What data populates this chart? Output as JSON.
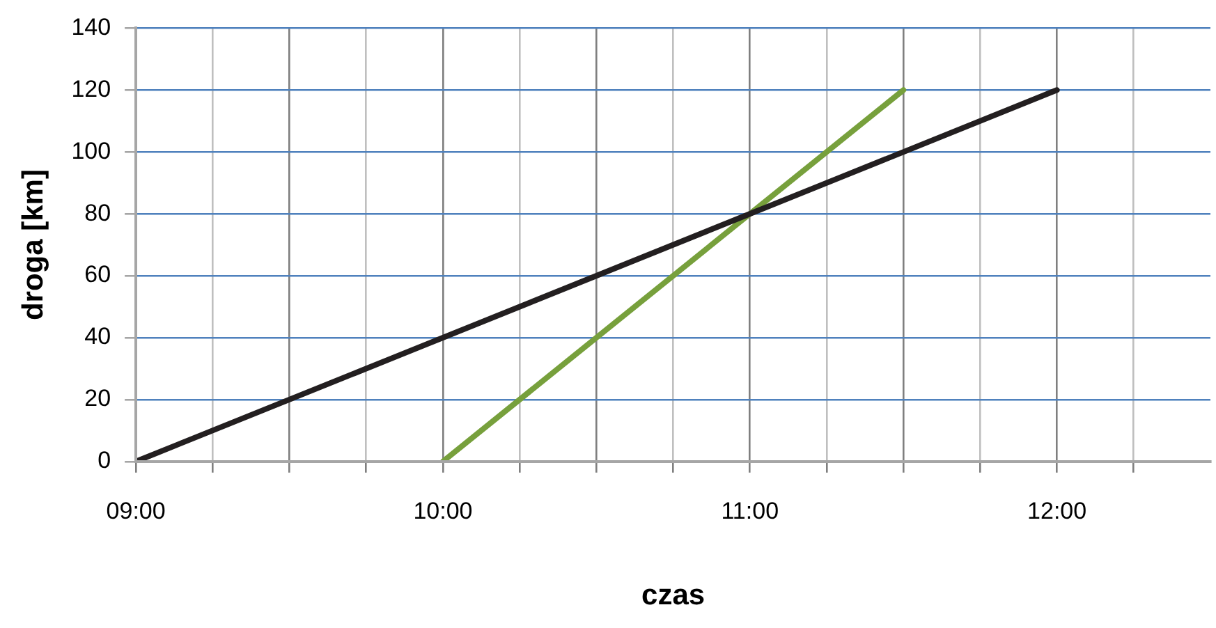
{
  "chart_data": {
    "type": "line",
    "xlabel": "czas",
    "ylabel": "droga [km]",
    "series": [
      {
        "color": "#231f20",
        "x": [
          9,
          12
        ],
        "values": [
          0,
          120
        ]
      },
      {
        "color": "#77a03c",
        "x": [
          10,
          11.5
        ],
        "values": [
          0,
          120
        ]
      }
    ],
    "xlim": [
      9,
      12.5
    ],
    "xticks": [
      {
        "value": 9,
        "label": "09:00"
      },
      {
        "value": 9.25,
        "label": null
      },
      {
        "value": 9.5,
        "label": null
      },
      {
        "value": 9.75,
        "label": null
      },
      {
        "value": 10,
        "label": "10:00"
      },
      {
        "value": 10.25,
        "label": null
      },
      {
        "value": 10.5,
        "label": null
      },
      {
        "value": 10.75,
        "label": null
      },
      {
        "value": 11,
        "label": "11:00"
      },
      {
        "value": 11.25,
        "label": null
      },
      {
        "value": 11.5,
        "label": null
      },
      {
        "value": 11.75,
        "label": null
      },
      {
        "value": 12,
        "label": "12:00"
      },
      {
        "value": 12.25,
        "label": null
      }
    ],
    "ylim": [
      0,
      140
    ],
    "yticks": [
      0,
      20,
      40,
      60,
      80,
      100,
      120,
      140
    ],
    "grid": true,
    "legend": false,
    "marker": "none",
    "line_style": "solid"
  }
}
